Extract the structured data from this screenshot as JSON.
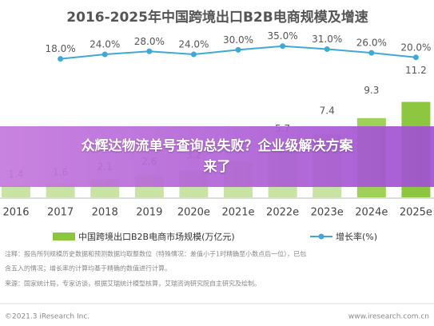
{
  "chart_data": {
    "type": "bar",
    "title": "2016-2025年中国跨境出口B2B电商规模及增速",
    "categories": [
      "2016",
      "2017",
      "2018",
      "2019",
      "2020e",
      "2021e",
      "2022e",
      "2023e",
      "2024e",
      "2025e"
    ],
    "series": [
      {
        "name": "中国跨境出口B2B电商市场规模(万亿元)",
        "type": "bar",
        "color": "#8dc63f",
        "colors": [
          "#c9e3a4",
          "#c9e3a4",
          "#c9e3a4",
          "#c9e3a4",
          "#c9e3a4",
          "#c9e3a4",
          "#c9e3a4",
          "#c9e3a4",
          "#9fd05a",
          "#8dc63f"
        ],
        "values": [
          1.4,
          1.6,
          2.1,
          2.6,
          3.2,
          4.2,
          5.7,
          7.4,
          9.3,
          11.2
        ]
      },
      {
        "name": "增长率(%)",
        "type": "line",
        "color": "#3fa9d6",
        "axis": "y2",
        "values": [
          null,
          18,
          24,
          28,
          24,
          30,
          35,
          31,
          26,
          20
        ],
        "value_labels": [
          null,
          "18.0%",
          "24.0%",
          "28.0%",
          "24.0%",
          "30.0%",
          "35.0%",
          "31.0%",
          "26.0%",
          "20.0%"
        ]
      }
    ],
    "ylim": [
      0,
      12
    ],
    "y2lim": [
      -10,
      40
    ]
  },
  "notes": [
    "注释：报告所列规模历史数据和预测数据均取整数位（特殊情况：差值小于1时精确至小数点后一位），已包",
    "含五入的情况；增长率的计算均基于精确的数值进行计算。",
    "来源：国家统计局，专家访谈，根据艾瑞统计模型核算，艾瑞咨询研究院自主研究及绘制。"
  ],
  "footer": {
    "copyright": "©2021.3 iResearch Inc.",
    "website": "www.iresearch.com.cn"
  },
  "overlay": {
    "text": "众辉达物流单号查询总失败？企业级解决方案来了"
  }
}
